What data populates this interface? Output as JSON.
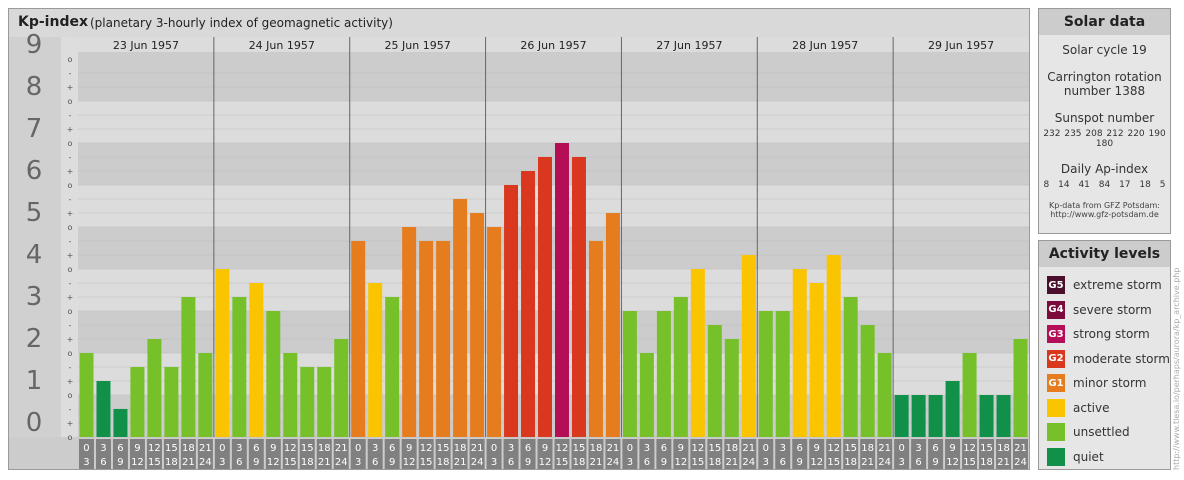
{
  "title": "Kp-index",
  "subtitle": "(planetary 3-hourly index of geomagnetic activity)",
  "chart_data": {
    "type": "bar",
    "ylim": [
      0,
      9
    ],
    "y_ticks": [
      "0",
      "1",
      "2",
      "3",
      "4",
      "5",
      "6",
      "7",
      "8",
      "9"
    ],
    "minor_ticks": [
      "o",
      "+",
      "-"
    ],
    "interval_top": [
      "0",
      "3",
      "6",
      "9",
      "12",
      "15",
      "18",
      "21"
    ],
    "interval_bottom": [
      "3",
      "6",
      "9",
      "12",
      "15",
      "18",
      "21",
      "24"
    ],
    "days": [
      {
        "date": "23 Jun 1957",
        "values": [
          2.0,
          1.333,
          0.667,
          1.667,
          2.333,
          1.667,
          3.333,
          2.0
        ]
      },
      {
        "date": "24 Jun 1957",
        "values": [
          4.0,
          3.333,
          3.667,
          3.0,
          2.0,
          1.667,
          1.667,
          2.333
        ]
      },
      {
        "date": "25 Jun 1957",
        "values": [
          4.667,
          3.667,
          3.333,
          5.0,
          4.667,
          4.667,
          5.667,
          5.333
        ]
      },
      {
        "date": "26 Jun 1957",
        "values": [
          5.0,
          6.0,
          6.333,
          6.667,
          7.0,
          6.667,
          4.667,
          5.333
        ]
      },
      {
        "date": "27 Jun 1957",
        "values": [
          3.0,
          2.0,
          3.0,
          3.333,
          4.0,
          2.667,
          2.333,
          4.333
        ]
      },
      {
        "date": "28 Jun 1957",
        "values": [
          3.0,
          3.0,
          4.0,
          3.667,
          4.333,
          3.333,
          2.667,
          2.0
        ]
      },
      {
        "date": "29 Jun 1957",
        "values": [
          1.0,
          1.0,
          1.0,
          1.333,
          2.0,
          1.0,
          1.0,
          2.333
        ]
      }
    ]
  },
  "colors": {
    "quiet": "#109048",
    "unsettled": "#76c02a",
    "active": "#fbc400",
    "G1": "#e57c1e",
    "G2": "#d9381e",
    "G3": "#b40e57",
    "G4": "#7d0a3c",
    "G5": "#4a0d2b"
  },
  "solar": {
    "heading": "Solar data",
    "cycle": "Solar cycle 19",
    "carrington_1": "Carrington rotation",
    "carrington_2": "number 1388",
    "sunspot_label": "Sunspot number",
    "sunspots": [
      "232",
      "235",
      "208",
      "212",
      "220",
      "190",
      "180"
    ],
    "ap_label": "Daily Ap-index",
    "ap": [
      "8",
      "14",
      "41",
      "84",
      "17",
      "18",
      "5"
    ],
    "source_1": "Kp-data from GFZ Potsdam:",
    "source_2": "http://www.gfz-potsdam.de"
  },
  "levels": {
    "heading": "Activity levels",
    "items": [
      {
        "code": "G5",
        "label": "extreme storm",
        "color": "#4a0d2b"
      },
      {
        "code": "G4",
        "label": "severe storm",
        "color": "#7d0a3c"
      },
      {
        "code": "G3",
        "label": "strong storm",
        "color": "#b40e57"
      },
      {
        "code": "G2",
        "label": "moderate storm",
        "color": "#d9381e"
      },
      {
        "code": "G1",
        "label": "minor storm",
        "color": "#e57c1e"
      },
      {
        "code": "",
        "label": "active",
        "color": "#fbc400"
      },
      {
        "code": "",
        "label": "unsettled",
        "color": "#76c02a"
      },
      {
        "code": "",
        "label": "quiet",
        "color": "#109048"
      }
    ]
  },
  "credit": "http://www.tlesa.io/perhaps/aurora/kp_archive.php"
}
